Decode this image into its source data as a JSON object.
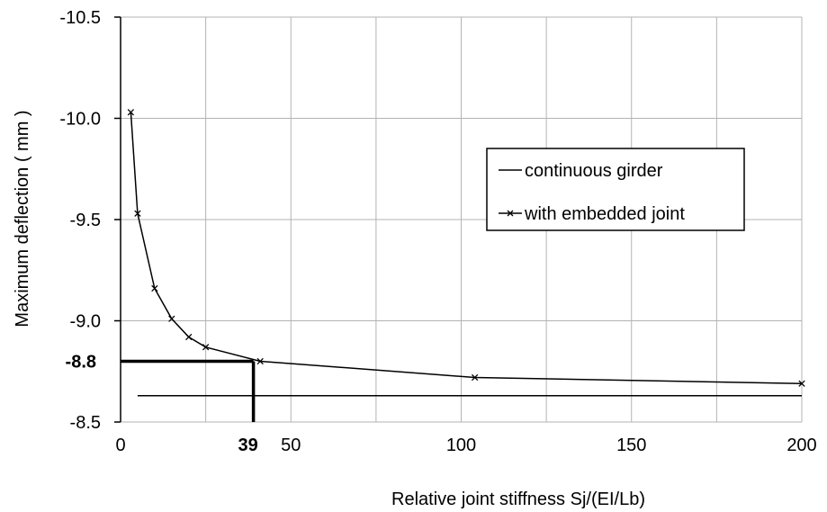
{
  "chart_data": {
    "type": "line",
    "xlabel": "Relative joint stiffness Sj/(EI/Lb)",
    "ylabel": "Maximum deflection ( mm )",
    "xlim": [
      0,
      200
    ],
    "ylim": [
      -10.5,
      -8.5
    ],
    "y_axis_reversed": true,
    "x_ticks": [
      {
        "value": 0,
        "label": "0"
      },
      {
        "value": 50,
        "label": "50"
      },
      {
        "value": 100,
        "label": "100"
      },
      {
        "value": 150,
        "label": "150"
      },
      {
        "value": 200,
        "label": "200"
      }
    ],
    "y_ticks": [
      {
        "value": -10.5,
        "label": "-10.5"
      },
      {
        "value": -10.0,
        "label": "-10.0"
      },
      {
        "value": -9.5,
        "label": "-9.5"
      },
      {
        "value": -9.0,
        "label": "-9.0"
      },
      {
        "value": -8.5,
        "label": "-8.5"
      }
    ],
    "grid": "vertical lines every 25, horizontal lines at labeled y ticks",
    "legend_position": "right",
    "series": [
      {
        "name": "continuous girder",
        "marker": "none",
        "color": "#000000",
        "x": [
          5,
          200
        ],
        "y": [
          -8.63,
          -8.63
        ]
      },
      {
        "name": "with embedded joint",
        "marker": "x",
        "color": "#000000",
        "x": [
          3,
          5,
          10,
          15,
          20,
          25,
          41,
          104,
          200
        ],
        "y": [
          -10.03,
          -9.53,
          -9.16,
          -9.01,
          -8.92,
          -8.87,
          -8.8,
          -8.72,
          -8.69
        ]
      }
    ],
    "annotations": [
      {
        "x": 39,
        "y": -8.8,
        "x_label": "39",
        "y_label": "-8.8",
        "style": "bold reference lines"
      }
    ]
  }
}
